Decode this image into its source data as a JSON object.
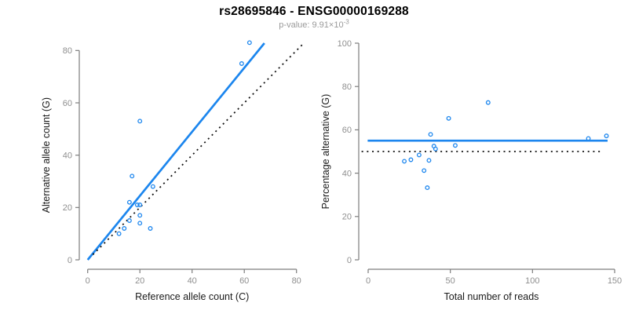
{
  "header": {
    "title": "rs28695846 - ENSG00000169288",
    "subtitle_prefix": "p-value: 9.91×10",
    "subtitle_exponent": "-3"
  },
  "colors": {
    "accent_blue": "#1C86EE",
    "dotted_line_black": "#111111",
    "axis_line_gray": "#7d7d7d",
    "tick_label_gray": "#8f8f8f",
    "axis_title_black": "#1a1a1a",
    "subtitle_gray": "#9a9a9a",
    "background": "#ffffff"
  },
  "chart_data": [
    {
      "id": "allele-counts-scatter",
      "type": "scatter",
      "title": "",
      "xlabel": "Reference allele count (C)",
      "ylabel": "Alternative allele count (G)",
      "xlim": [
        0,
        80
      ],
      "ylim": [
        0,
        80
      ],
      "xticks": [
        0,
        20,
        40,
        60,
        80
      ],
      "yticks": [
        0,
        20,
        40,
        60,
        80
      ],
      "grid": false,
      "legend": "none",
      "marker": "open-circle",
      "points": [
        {
          "x": 62,
          "y": 83
        },
        {
          "x": 59,
          "y": 75
        },
        {
          "x": 20,
          "y": 53
        },
        {
          "x": 17,
          "y": 32
        },
        {
          "x": 25,
          "y": 28
        },
        {
          "x": 16,
          "y": 22
        },
        {
          "x": 19,
          "y": 21
        },
        {
          "x": 20,
          "y": 21
        },
        {
          "x": 20,
          "y": 17
        },
        {
          "x": 16,
          "y": 15
        },
        {
          "x": 20,
          "y": 14
        },
        {
          "x": 14,
          "y": 12
        },
        {
          "x": 24,
          "y": 12
        },
        {
          "x": 12,
          "y": 10
        }
      ],
      "lines": [
        {
          "name": "fitted-ratio-line",
          "style": "solid",
          "color": "#1C86EE",
          "x1": 0,
          "y1": 0,
          "x2": 67.7,
          "y2": 82.8
        },
        {
          "name": "identity-line",
          "style": "dotted",
          "color": "#111111",
          "x1": 2,
          "y1": 2,
          "x2": 82.8,
          "y2": 82.8
        }
      ]
    },
    {
      "id": "percentage-vs-reads-scatter",
      "type": "scatter",
      "title": "",
      "xlabel": "Total number of reads",
      "ylabel": "Percentage alternative (G)",
      "xlim": [
        0,
        150
      ],
      "ylim": [
        0,
        100
      ],
      "xticks": [
        0,
        50,
        100,
        150
      ],
      "yticks": [
        0,
        20,
        40,
        60,
        80,
        100
      ],
      "grid": false,
      "legend": "none",
      "marker": "open-circle",
      "points": [
        {
          "x": 145,
          "y": 57.2
        },
        {
          "x": 134,
          "y": 56.0
        },
        {
          "x": 73,
          "y": 72.6
        },
        {
          "x": 49,
          "y": 65.3
        },
        {
          "x": 53,
          "y": 52.8
        },
        {
          "x": 38,
          "y": 57.9
        },
        {
          "x": 40,
          "y": 52.5
        },
        {
          "x": 41,
          "y": 51.2
        },
        {
          "x": 37,
          "y": 45.9
        },
        {
          "x": 31,
          "y": 48.4
        },
        {
          "x": 34,
          "y": 41.2
        },
        {
          "x": 26,
          "y": 46.2
        },
        {
          "x": 36,
          "y": 33.3
        },
        {
          "x": 22,
          "y": 45.5
        }
      ],
      "lines": [
        {
          "name": "mean-percentage-line",
          "style": "solid",
          "color": "#1C86EE",
          "x1": -0.3,
          "y1": 55,
          "x2": 145.7,
          "y2": 55
        },
        {
          "name": "fifty-percent-line",
          "style": "dotted",
          "color": "#111111",
          "x1": -4,
          "y1": 50,
          "x2": 143,
          "y2": 50
        }
      ]
    }
  ]
}
